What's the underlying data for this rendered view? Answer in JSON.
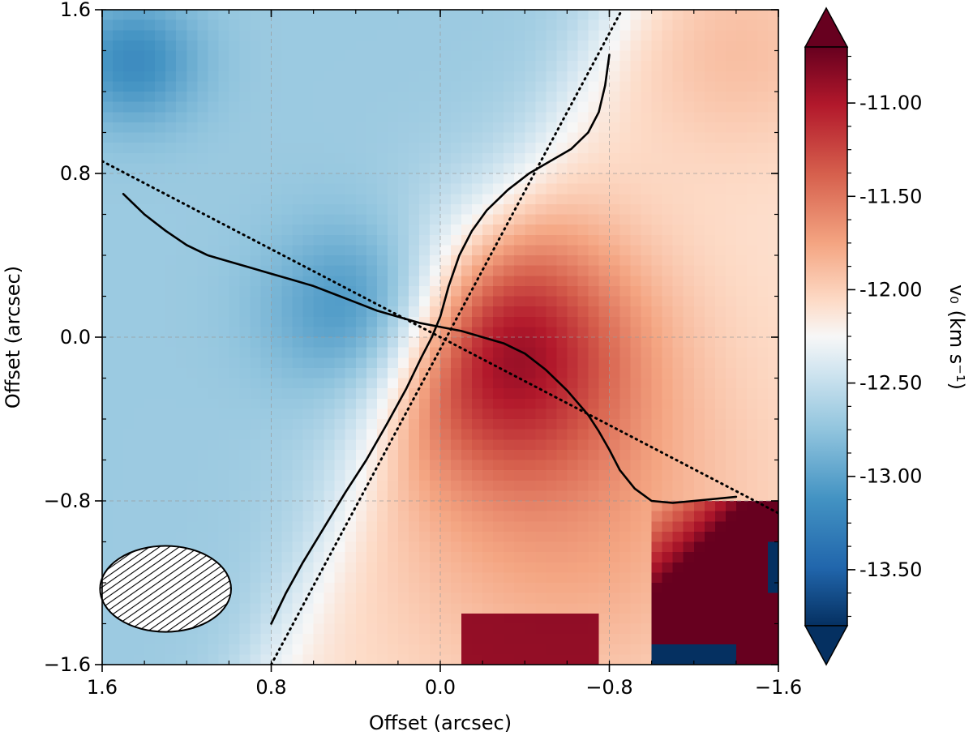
{
  "chart_data": {
    "type": "heatmap",
    "title": "",
    "xlabel": "Offset (arcsec)",
    "ylabel": "Offset (arcsec)",
    "xlim": [
      1.6,
      -1.6
    ],
    "ylim": [
      -1.6,
      1.6
    ],
    "xticks": [
      {
        "value": 1.6,
        "label": "1.6"
      },
      {
        "value": 0.8,
        "label": "0.8"
      },
      {
        "value": 0.0,
        "label": "0.0"
      },
      {
        "value": -0.8,
        "label": "−0.8"
      },
      {
        "value": -1.6,
        "label": "−1.6"
      }
    ],
    "yticks": [
      {
        "value": 1.6,
        "label": "1.6"
      },
      {
        "value": 0.8,
        "label": "0.8"
      },
      {
        "value": 0.0,
        "label": "0.0"
      },
      {
        "value": -0.8,
        "label": "−0.8"
      },
      {
        "value": -1.6,
        "label": "−1.6"
      }
    ],
    "grid": true,
    "colormap": {
      "name": "RdBu_r",
      "extend": "both",
      "low": "#053061",
      "high": "#67001f"
    },
    "colorbar": {
      "label": "v₀ (km s⁻¹)",
      "vmin": -13.8,
      "vmax": -10.7,
      "ticks": [
        {
          "value": -11.0,
          "label": "-11.00"
        },
        {
          "value": -11.5,
          "label": "-11.50"
        },
        {
          "value": -12.0,
          "label": "-12.00"
        },
        {
          "value": -12.5,
          "label": "-12.50"
        },
        {
          "value": -13.0,
          "label": "-13.00"
        },
        {
          "value": -13.5,
          "label": "-13.50"
        }
      ]
    },
    "velocity_features": {
      "systemic": -12.4,
      "blue_lobe": {
        "center": [
          0.35,
          0.12
        ],
        "peak": -13.2
      },
      "red_lobe": {
        "center": [
          -0.3,
          -0.05
        ],
        "peak": -10.8
      },
      "red_corner_region": {
        "center": [
          -1.45,
          -1.45
        ],
        "peak": -10.7
      },
      "blue_corner_region": {
        "center": [
          -1.3,
          -1.6
        ],
        "peak": -13.8
      },
      "blue_top_left_region": {
        "center": [
          1.45,
          1.35
        ],
        "peak": -13.0
      }
    },
    "series": [
      {
        "name": "dotted-line-steep",
        "style": "dotted",
        "x": [
          0.8,
          -0.86
        ],
        "y": [
          -1.6,
          1.6
        ]
      },
      {
        "name": "dotted-line-shallow",
        "style": "dotted",
        "x": [
          1.6,
          -1.6
        ],
        "y": [
          0.86,
          -0.86
        ]
      },
      {
        "name": "curve-steep",
        "style": "solid",
        "x": [
          0.8,
          0.73,
          0.65,
          0.55,
          0.45,
          0.35,
          0.25,
          0.16,
          0.09,
          0.04,
          0.0,
          -0.04,
          -0.09,
          -0.15,
          -0.22,
          -0.32,
          -0.42,
          -0.52,
          -0.62,
          -0.7,
          -0.75,
          -0.78,
          -0.8
        ],
        "y": [
          -1.4,
          -1.25,
          -1.1,
          -0.93,
          -0.76,
          -0.6,
          -0.42,
          -0.25,
          -0.1,
          0.0,
          0.1,
          0.25,
          0.4,
          0.52,
          0.62,
          0.72,
          0.8,
          0.86,
          0.92,
          1.0,
          1.1,
          1.23,
          1.38
        ]
      },
      {
        "name": "curve-shallow",
        "style": "solid",
        "x": [
          1.5,
          1.4,
          1.3,
          1.2,
          1.1,
          1.0,
          0.9,
          0.8,
          0.7,
          0.6,
          0.5,
          0.4,
          0.3,
          0.2,
          0.1,
          0.0,
          -0.1,
          -0.2,
          -0.3,
          -0.4,
          -0.5,
          -0.6,
          -0.7,
          -0.75,
          -0.8,
          -0.85,
          -0.92,
          -1.0,
          -1.1,
          -1.2,
          -1.3,
          -1.4
        ],
        "y": [
          0.7,
          0.6,
          0.52,
          0.45,
          0.4,
          0.37,
          0.34,
          0.31,
          0.28,
          0.25,
          0.21,
          0.17,
          0.13,
          0.1,
          0.07,
          0.05,
          0.03,
          0.0,
          -0.03,
          -0.08,
          -0.16,
          -0.26,
          -0.38,
          -0.46,
          -0.55,
          -0.65,
          -0.74,
          -0.8,
          -0.81,
          -0.8,
          -0.79,
          -0.78
        ]
      }
    ],
    "beam": {
      "center": [
        1.3,
        -1.23
      ],
      "major": 0.62,
      "minor": 0.42,
      "pa_deg": 0,
      "hatched": true
    }
  }
}
